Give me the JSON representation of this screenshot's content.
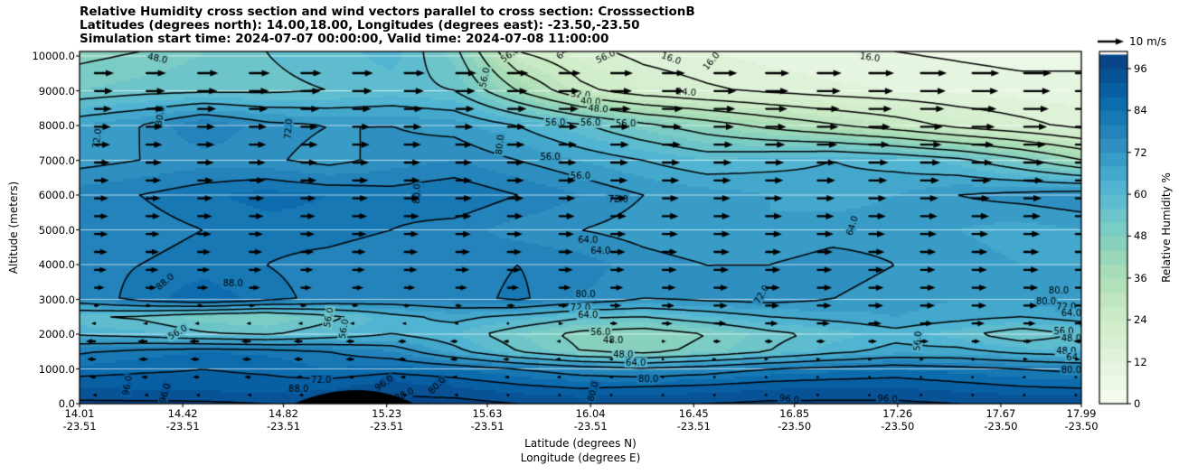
{
  "header": {
    "title_line1": "Relative Humidity cross section and wind vectors parallel to cross section: CrosssectionB",
    "title_line2": "Latitudes (degrees north): 14.00,18.00, Longitudes (degrees east): -23.50,-23.50",
    "title_line3": "Simulation start time: 2024-07-07 00:00:00, Valid time: 2024-07-08 11:00:00"
  },
  "axes": {
    "y_label": "Altitude (meters)",
    "y_ticks": [
      {
        "label": "10000.0",
        "alt": 10000
      },
      {
        "label": "9000.0",
        "alt": 9000
      },
      {
        "label": "8000.0",
        "alt": 8000
      },
      {
        "label": "7000.0",
        "alt": 7000
      },
      {
        "label": "6000.0",
        "alt": 6000
      },
      {
        "label": "5000.0",
        "alt": 5000
      },
      {
        "label": "4000.0",
        "alt": 4000
      },
      {
        "label": "3000.0",
        "alt": 3000
      },
      {
        "label": "2000.0",
        "alt": 2000
      },
      {
        "label": "1000.0",
        "alt": 1000
      },
      {
        "label": "0.0",
        "alt": 0
      }
    ],
    "x_label_line1": "Latitude (degrees N)",
    "x_label_line2": "Longitude (degrees E)",
    "x_ticks": [
      {
        "lat_label": "14.01",
        "lon_label": "-23.51",
        "lat": 14.01
      },
      {
        "lat_label": "14.42",
        "lon_label": "-23.51",
        "lat": 14.42
      },
      {
        "lat_label": "14.82",
        "lon_label": "-23.51",
        "lat": 14.82
      },
      {
        "lat_label": "15.23",
        "lon_label": "-23.51",
        "lat": 15.23
      },
      {
        "lat_label": "15.63",
        "lon_label": "-23.51",
        "lat": 15.63
      },
      {
        "lat_label": "16.04",
        "lon_label": "-23.51",
        "lat": 16.04
      },
      {
        "lat_label": "16.45",
        "lon_label": "-23.51",
        "lat": 16.45
      },
      {
        "lat_label": "16.85",
        "lon_label": "-23.50",
        "lat": 16.85
      },
      {
        "lat_label": "17.26",
        "lon_label": "-23.50",
        "lat": 17.26
      },
      {
        "lat_label": "17.67",
        "lon_label": "-23.50",
        "lat": 17.67
      },
      {
        "lat_label": "17.99",
        "lon_label": "-23.50",
        "lat": 17.99
      }
    ]
  },
  "colorbar": {
    "label": "Relative Humidity %",
    "ticks": [
      {
        "label": "96",
        "value": 96
      },
      {
        "label": "84",
        "value": 84
      },
      {
        "label": "72",
        "value": 72
      },
      {
        "label": "60",
        "value": 60
      },
      {
        "label": "48",
        "value": 48
      },
      {
        "label": "36",
        "value": 36
      },
      {
        "label": "24",
        "value": 24
      },
      {
        "label": "12",
        "value": 12
      },
      {
        "label": "0",
        "value": 0
      }
    ],
    "vmin": 0,
    "vmax": 100.9,
    "band_step": 4,
    "colormap": "GnBu",
    "colormap_stops": [
      [
        0.0,
        "#f7fcf0"
      ],
      [
        0.125,
        "#e0f3db"
      ],
      [
        0.25,
        "#ccebc5"
      ],
      [
        0.375,
        "#a8ddb5"
      ],
      [
        0.5,
        "#7bccc4"
      ],
      [
        0.625,
        "#4eb3d3"
      ],
      [
        0.75,
        "#2b8cbe"
      ],
      [
        0.875,
        "#0868ac"
      ],
      [
        1.0,
        "#084081"
      ]
    ]
  },
  "quiver_key": {
    "label": "10 m/s",
    "speed_ms": 10
  },
  "chart_data": {
    "type": "heatmap",
    "title": "Relative Humidity cross section and wind vectors parallel to cross section: CrosssectionB",
    "xlabel": "Latitude (degrees N) / Longitude (degrees E)",
    "ylabel": "Altitude (meters)",
    "zlabel": "Relative Humidity %",
    "xlim": [
      14.01,
      17.99
    ],
    "ylim": [
      0,
      10130
    ],
    "grid": true,
    "lats": [
      14.0,
      14.25,
      14.5,
      14.75,
      15.0,
      15.25,
      15.5,
      15.75,
      16.0,
      16.25,
      16.5,
      16.75,
      17.0,
      17.25,
      17.5,
      17.75,
      18.0
    ],
    "alts": [
      0,
      500,
      1000,
      1500,
      2000,
      2500,
      3000,
      4000,
      5000,
      6000,
      7000,
      8000,
      9000,
      10130
    ],
    "rh": [
      [
        97,
        97,
        97,
        96,
        96,
        98,
        98,
        96,
        95,
        96,
        96,
        97,
        97,
        97,
        96,
        96,
        96
      ],
      [
        92,
        91,
        90,
        90,
        91,
        94,
        92,
        89,
        87,
        88,
        89,
        91,
        92,
        92,
        90,
        88,
        87
      ],
      [
        85,
        87,
        88,
        87,
        84,
        86,
        84,
        80,
        76,
        73,
        76,
        80,
        82,
        84,
        82,
        80,
        78
      ],
      [
        79,
        82,
        84,
        83,
        80,
        76,
        66,
        56,
        48,
        46,
        50,
        56,
        62,
        66,
        66,
        62,
        60
      ],
      [
        63,
        61,
        57,
        55,
        60,
        64,
        60,
        52,
        46,
        44,
        48,
        54,
        58,
        62,
        58,
        52,
        57
      ],
      [
        57,
        55,
        50,
        48,
        54,
        62,
        66,
        62,
        57,
        56,
        60,
        64,
        66,
        68,
        66,
        64,
        67
      ],
      [
        76,
        82,
        87,
        82,
        78,
        76,
        78,
        81,
        76,
        72,
        73,
        74,
        72,
        70,
        68,
        68,
        71
      ],
      [
        78,
        80,
        82,
        80,
        78,
        76,
        78,
        80,
        78,
        74,
        72,
        72,
        74,
        72,
        70,
        68,
        68
      ],
      [
        76,
        78,
        80,
        82,
        82,
        80,
        78,
        74,
        72,
        70,
        68,
        68,
        70,
        70,
        68,
        66,
        68
      ],
      [
        78,
        80,
        83,
        86,
        84,
        82,
        84,
        80,
        76,
        72,
        70,
        68,
        66,
        68,
        72,
        74,
        76
      ],
      [
        70,
        72,
        74,
        73,
        70,
        74,
        76,
        72,
        68,
        64,
        60,
        62,
        64,
        62,
        58,
        50,
        40
      ],
      [
        68,
        72,
        80,
        74,
        72,
        72,
        70,
        64,
        57,
        50,
        44,
        38,
        33,
        28,
        22,
        18,
        14
      ],
      [
        52,
        54,
        55,
        55,
        56,
        58,
        56,
        40,
        26,
        20,
        17,
        15,
        13,
        12,
        11,
        10,
        10
      ],
      [
        46,
        48,
        52,
        56,
        58,
        62,
        50,
        24,
        18,
        14,
        12,
        10,
        9,
        8,
        7,
        6,
        6
      ]
    ],
    "contour_levels": [
      8,
      16,
      24,
      32,
      40,
      48,
      56,
      64,
      72,
      80,
      88,
      96
    ],
    "contour_labels": [
      [
        "48.0",
        14.32,
        9930,
        12
      ],
      [
        "56.0",
        15.62,
        9380,
        -78
      ],
      [
        "56.0",
        15.72,
        10040,
        -35
      ],
      [
        "64.",
        15.93,
        10100,
        -50
      ],
      [
        "56.0",
        16.1,
        9980,
        -25
      ],
      [
        "16.0",
        16.36,
        9930,
        20
      ],
      [
        "16.0",
        16.52,
        9850,
        -50
      ],
      [
        "16.0",
        17.15,
        9960,
        8
      ],
      [
        "24.0",
        16.42,
        8960,
        4
      ],
      [
        "32.0",
        16.0,
        8890,
        4
      ],
      [
        "40.0",
        16.04,
        8690,
        4
      ],
      [
        "48.0",
        16.07,
        8480,
        4
      ],
      [
        "56.0",
        15.9,
        8090,
        0
      ],
      [
        "56.0",
        16.04,
        8070,
        0
      ],
      [
        "56.0",
        16.18,
        8050,
        0
      ],
      [
        "80.0",
        14.33,
        8270,
        -82
      ],
      [
        "72.0",
        14.84,
        7900,
        -85
      ],
      [
        "72.0",
        14.08,
        7620,
        -82
      ],
      [
        "80.0",
        15.68,
        7450,
        -85
      ],
      [
        "56.0",
        15.88,
        7100,
        0
      ],
      [
        "56.0",
        16.0,
        6560,
        0
      ],
      [
        "80.0",
        15.35,
        6040,
        -88
      ],
      [
        "72.0",
        16.15,
        5880,
        0
      ],
      [
        "64.0",
        17.08,
        5120,
        -72
      ],
      [
        "64.0",
        16.03,
        4700,
        0
      ],
      [
        "64.0",
        16.08,
        4380,
        0
      ],
      [
        "88.0",
        14.35,
        3500,
        -40
      ],
      [
        "88.0",
        14.62,
        3450,
        0
      ],
      [
        "72.0",
        16.72,
        3140,
        -60
      ],
      [
        "80.0",
        16.02,
        3150,
        0
      ],
      [
        "72.0",
        16.0,
        2760,
        0
      ],
      [
        "64.0",
        16.03,
        2560,
        0
      ],
      [
        "56.0",
        16.08,
        2060,
        0
      ],
      [
        "48.0",
        16.13,
        1830,
        0
      ],
      [
        "48.0",
        16.17,
        1400,
        0
      ],
      [
        "64.0",
        16.22,
        1180,
        0
      ],
      [
        "80.0",
        16.27,
        700,
        0
      ],
      [
        "56.0",
        15.0,
        2480,
        -80
      ],
      [
        "56.0",
        15.06,
        2150,
        -80
      ],
      [
        "56.0",
        14.4,
        2050,
        -30
      ],
      [
        "96.0",
        14.35,
        300,
        -75
      ],
      [
        "96.0",
        14.2,
        520,
        -80
      ],
      [
        "72.0",
        14.97,
        680,
        0
      ],
      [
        "88.0",
        14.88,
        430,
        0
      ],
      [
        "96.0",
        15.22,
        590,
        -35
      ],
      [
        "80.0",
        15.43,
        520,
        -45
      ],
      [
        "88.0",
        15.3,
        260,
        -25
      ],
      [
        "80.0",
        16.05,
        350,
        -75
      ],
      [
        "96.0",
        16.83,
        130,
        8
      ],
      [
        "96.0",
        17.22,
        140,
        4
      ],
      [
        "80.0",
        17.85,
        2930,
        0
      ],
      [
        "56.0",
        17.34,
        1800,
        -85
      ],
      [
        "80.0",
        17.9,
        3250,
        0
      ],
      [
        "72.0",
        17.93,
        2770,
        0
      ],
      [
        "64.0",
        17.95,
        2600,
        0
      ],
      [
        "56.0",
        17.92,
        2090,
        0
      ],
      [
        "48.0",
        17.95,
        1880,
        0
      ],
      [
        "48.0",
        17.93,
        1500,
        0
      ],
      [
        "64.0",
        17.97,
        1340,
        0
      ],
      [
        "80.0",
        17.95,
        960,
        0
      ]
    ],
    "wind": {
      "units": "m/s",
      "lats": [
        14.0,
        14.5,
        15.0,
        15.5,
        16.0,
        16.5,
        17.0,
        17.5,
        18.0
      ],
      "alts": [
        200,
        700,
        1200,
        1800,
        2400,
        3000,
        3800,
        4800,
        5800,
        6800,
        8000,
        9200,
        10100
      ],
      "u_ms": [
        [
          -0.8,
          -0.8,
          -0.8,
          -0.8,
          -0.5,
          -0.4,
          -0.4,
          -0.4,
          -0.4
        ],
        [
          -2.0,
          -2.0,
          -2.0,
          -1.5,
          -1.0,
          -0.5,
          -0.4,
          -0.4,
          0.5
        ],
        [
          -3.0,
          -3.0,
          -3.0,
          -2.5,
          -1.5,
          0.5,
          1.0,
          1.0,
          1.5
        ],
        [
          -3.5,
          -3.5,
          -3.0,
          -2.5,
          -1.0,
          2.5,
          3.0,
          3.0,
          3.0
        ],
        [
          -1.0,
          -1.0,
          -1.0,
          -0.5,
          2.5,
          5.0,
          5.0,
          5.0,
          4.5
        ],
        [
          3.0,
          3.5,
          3.5,
          3.5,
          4.0,
          5.0,
          5.5,
          5.5,
          5.0
        ],
        [
          4.5,
          4.5,
          4.5,
          5.0,
          5.0,
          5.5,
          5.5,
          5.5,
          5.5
        ],
        [
          5.0,
          5.0,
          5.0,
          5.5,
          5.5,
          6.0,
          6.0,
          6.0,
          6.0
        ],
        [
          5.0,
          5.5,
          5.5,
          6.0,
          6.0,
          6.0,
          6.5,
          6.5,
          6.5
        ],
        [
          5.5,
          6.0,
          6.0,
          6.0,
          6.5,
          6.5,
          7.0,
          7.5,
          8.0
        ],
        [
          6.0,
          6.5,
          6.5,
          6.5,
          7.0,
          7.5,
          8.0,
          8.5,
          9.0
        ],
        [
          7.0,
          7.5,
          7.5,
          7.5,
          8.0,
          8.5,
          9.0,
          10.0,
          10.5
        ],
        [
          7.5,
          8.0,
          8.0,
          8.0,
          8.5,
          9.0,
          9.5,
          10.5,
          11.0
        ]
      ]
    },
    "terrain": {
      "lat_start": 14.86,
      "lat_peak": 15.12,
      "lat_end": 15.34,
      "peak_alt_m": 390,
      "color": "#000000"
    }
  }
}
